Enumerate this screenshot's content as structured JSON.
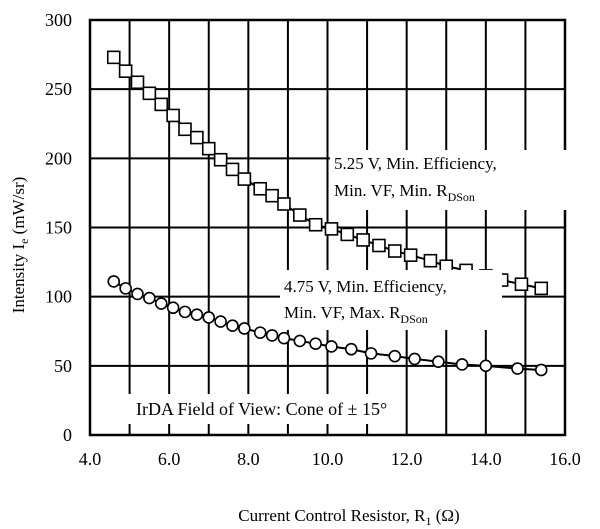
{
  "chart_data": {
    "type": "line",
    "xlim": [
      4.0,
      16.0
    ],
    "ylim": [
      0,
      300
    ],
    "xticks": [
      4.0,
      6.0,
      8.0,
      10.0,
      12.0,
      14.0,
      16.0
    ],
    "xtick_labels": [
      "4.0",
      "6.0",
      "8.0",
      "10.0",
      "12.0",
      "14.0",
      "16.0"
    ],
    "yticks": [
      0,
      50,
      100,
      150,
      200,
      250,
      300
    ],
    "ytick_labels": [
      "0",
      "50",
      "100",
      "150",
      "200",
      "250",
      "300"
    ],
    "xlabel": {
      "main": "Current Control Resistor, R",
      "sub": "1",
      "tail": " (Ω)"
    },
    "ylabel": {
      "main": "Intensity I",
      "sub": "e",
      "tail": "  (mW/sr)"
    },
    "grid": true,
    "series": [
      {
        "marker": "square",
        "x": [
          4.6,
          4.9,
          5.2,
          5.5,
          5.8,
          6.1,
          6.4,
          6.7,
          7.0,
          7.3,
          7.6,
          7.9,
          8.3,
          8.6,
          8.9,
          9.3,
          9.7,
          10.1,
          10.5,
          10.9,
          11.3,
          11.7,
          12.1,
          12.6,
          13.0,
          13.5,
          14.0,
          14.4,
          14.9,
          15.4
        ],
        "y": [
          273,
          263,
          255,
          247,
          239,
          231,
          221,
          215,
          207,
          199,
          192,
          185,
          178,
          173,
          167,
          159,
          152,
          149,
          145,
          141,
          137,
          133,
          130,
          126,
          122,
          119,
          115,
          112,
          109,
          106
        ]
      },
      {
        "marker": "circle",
        "x": [
          4.6,
          4.9,
          5.2,
          5.5,
          5.8,
          6.1,
          6.4,
          6.7,
          7.0,
          7.3,
          7.6,
          7.9,
          8.3,
          8.6,
          8.9,
          9.3,
          9.7,
          10.1,
          10.6,
          11.1,
          11.7,
          12.2,
          12.8,
          13.4,
          14.0,
          14.8,
          15.4
        ],
        "y": [
          111,
          106,
          102,
          99,
          95,
          92,
          89,
          87,
          85,
          82,
          79,
          77,
          74,
          72,
          70,
          68,
          66,
          64,
          62,
          59,
          57,
          55,
          53,
          51,
          50,
          48,
          47
        ]
      }
    ],
    "annotations": [
      {
        "line1": "5.25 V, Min. Efficiency,",
        "line2_main": "Min. VF, Min. R",
        "line2_sub": "DSon"
      },
      {
        "line1": "4.75 V, Min. Efficiency,",
        "line2_main": "Min. VF, Max. R",
        "line2_sub": "DSon"
      }
    ],
    "fov_label": "IrDA Field of View: Cone of ± 15°"
  }
}
